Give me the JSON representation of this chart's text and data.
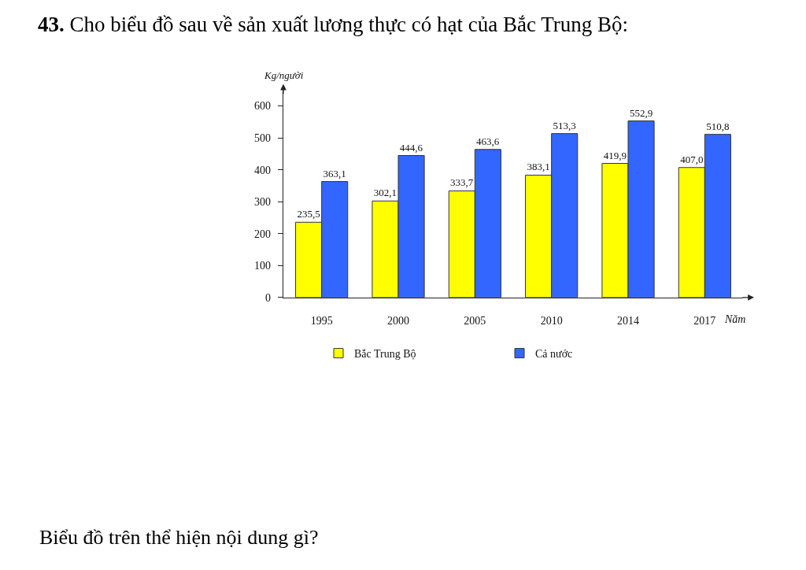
{
  "chart_data": {
    "type": "bar",
    "title": "43. Cho biểu đồ sau về sản xuất lương thực có hạt của Bắc Trung Bộ:",
    "xlabel": "Năm",
    "ylabel": "Kg/người",
    "annotations": [
      "Biểu đồ trên thể hiện nội dung gì?"
    ],
    "categories": [
      "1995",
      "2000",
      "2005",
      "2010",
      "2014",
      "2017"
    ],
    "series": [
      {
        "name": "Bắc Trung Bộ",
        "color": "#ffff00",
        "values": [
          235.5,
          302.1,
          333.7,
          383.1,
          419.9,
          407.0
        ],
        "value_labels": [
          "235,5",
          "302,1",
          "333,7",
          "383,1",
          "419,9",
          "407,0"
        ]
      },
      {
        "name": "Cả nước",
        "color": "#3366ff",
        "values": [
          363.1,
          444.6,
          463.6,
          513.3,
          552.9,
          510.8
        ],
        "value_labels": [
          "363,1",
          "444,6",
          "463,6",
          "513,3",
          "552,9",
          "510,8"
        ]
      }
    ],
    "ylim": [
      0,
      650
    ],
    "yticks": [
      0,
      100,
      200,
      300,
      400,
      500,
      600
    ],
    "legend": "bottom"
  }
}
